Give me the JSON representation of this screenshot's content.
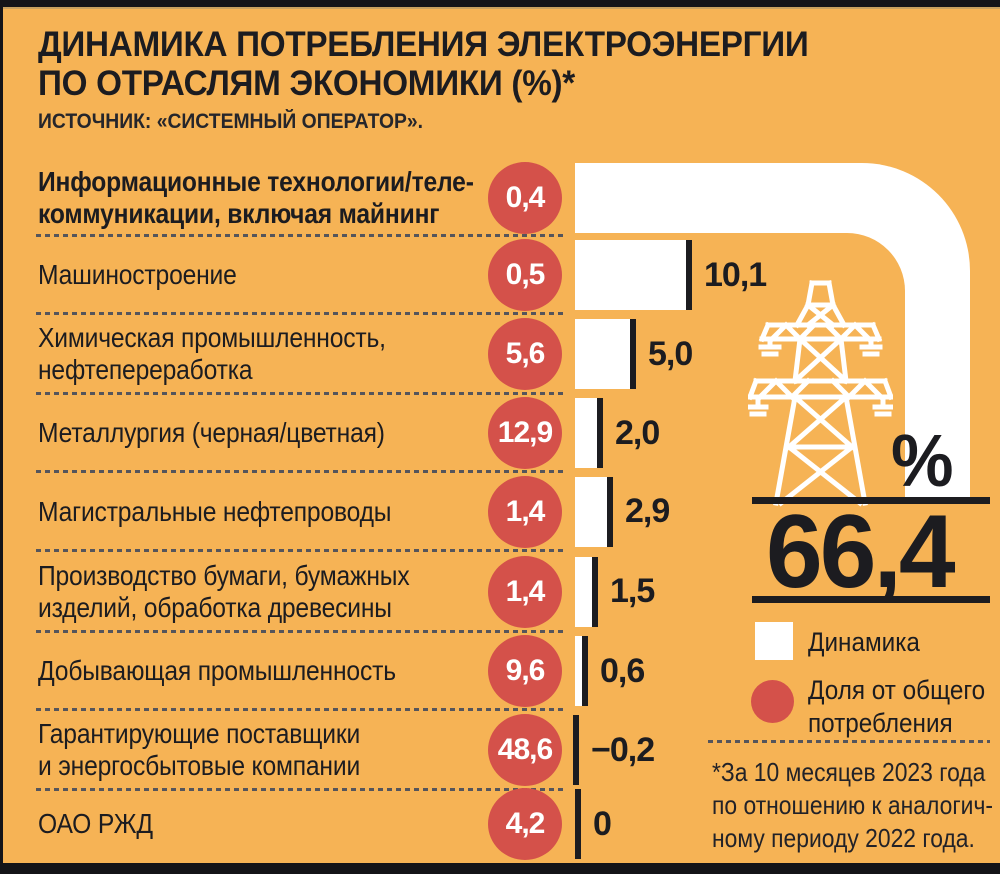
{
  "header": {
    "title_line1": "ДИНАМИКА ПОТРЕБЛЕНИЯ ЭЛЕКТРОЭНЕРГИИ",
    "title_line2": "ПО ОТРАСЛЯМ ЭКОНОМИКИ (%)*",
    "source": "ИСТОЧНИК: «СИСТЕМНЫЙ ОПЕРАТОР»."
  },
  "chart_data": {
    "type": "bar",
    "title": "Динамика потребления электроэнергии по отраслям экономики (%)",
    "unit": "%",
    "legend_position": "bottom-right",
    "categories": [
      "Информационные технологии/телекоммуникации, включая майнинг",
      "Машиностроение",
      "Химическая промышленность, нефтепереработка",
      "Металлургия (черная/цветная)",
      "Магистральные нефтепроводы",
      "Производство бумаги, бумажных изделий, обработка древесины",
      "Добывающая промышленность",
      "Гарантирующие поставщики и энергосбытовые компании",
      "ОАО РЖД"
    ],
    "series": [
      {
        "name": "Динамика",
        "values": [
          66.4,
          10.1,
          5.0,
          2.0,
          2.9,
          1.5,
          0.6,
          -0.2,
          0
        ]
      },
      {
        "name": "Доля от общего потребления",
        "values": [
          0.4,
          0.5,
          5.6,
          12.9,
          1.4,
          1.4,
          9.6,
          48.6,
          4.2
        ]
      }
    ],
    "rows": [
      {
        "label_lines": [
          "Информационные технологии/теле-",
          "коммуникации, включая майнинг"
        ],
        "bold": true,
        "share_display": "0,4",
        "dynamics": 66.4,
        "dynamics_display": "66,4",
        "highlight": true
      },
      {
        "label_lines": [
          "Машиностроение"
        ],
        "bold": false,
        "share_display": "0,5",
        "dynamics": 10.1,
        "dynamics_display": "10,1",
        "highlight": false
      },
      {
        "label_lines": [
          "Химическая промышленность,",
          "нефтепереработка"
        ],
        "bold": false,
        "share_display": "5,6",
        "dynamics": 5.0,
        "dynamics_display": "5,0",
        "highlight": false
      },
      {
        "label_lines": [
          "Металлургия (черная/цветная)"
        ],
        "bold": false,
        "share_display": "12,9",
        "dynamics": 2.0,
        "dynamics_display": "2,0",
        "highlight": false
      },
      {
        "label_lines": [
          "Магистральные нефтепроводы"
        ],
        "bold": false,
        "share_display": "1,4",
        "dynamics": 2.9,
        "dynamics_display": "2,9",
        "highlight": false
      },
      {
        "label_lines": [
          "Производство бумаги, бумажных",
          "изделий, обработка древесины"
        ],
        "bold": false,
        "share_display": "1,4",
        "dynamics": 1.5,
        "dynamics_display": "1,5",
        "highlight": false
      },
      {
        "label_lines": [
          "Добывающая промышленность"
        ],
        "bold": false,
        "share_display": "9,6",
        "dynamics": 0.6,
        "dynamics_display": "0,6",
        "highlight": false
      },
      {
        "label_lines": [
          "Гарантирующие поставщики",
          "и энергосбытовые компании"
        ],
        "bold": false,
        "share_display": "48,6",
        "dynamics": -0.2,
        "dynamics_display": "−0,2",
        "highlight": false
      },
      {
        "label_lines": [
          "ОАО РЖД"
        ],
        "bold": false,
        "share_display": "4,2",
        "dynamics": 0,
        "dynamics_display": "0",
        "highlight": false
      }
    ],
    "highlight": {
      "value_display": "66,4",
      "unit_symbol": "%"
    },
    "legend": [
      {
        "swatch": "white-square",
        "lines": [
          "Динамика"
        ]
      },
      {
        "swatch": "red-circle",
        "lines": [
          "Доля от общего",
          "потребления"
        ]
      }
    ]
  },
  "footnote": {
    "lines": [
      "*За 10 месяцев 2023 года",
      "по отношению к аналогич-",
      "ному периоду 2022 года."
    ]
  },
  "colors": {
    "background": "#F6B355",
    "circle_red": "#D4514A",
    "ink": "#1C1C20",
    "white": "#FFFFFF",
    "dash": "#55555B",
    "frame_black": "#141418"
  }
}
